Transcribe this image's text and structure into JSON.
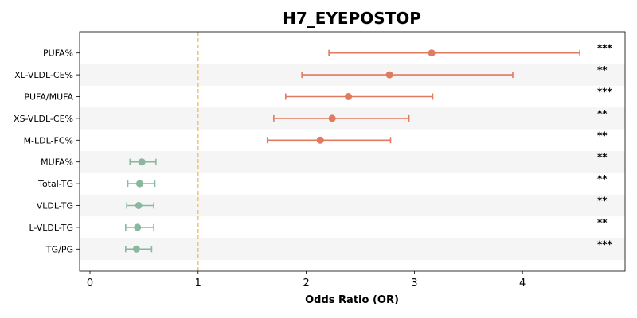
{
  "chart_data": {
    "type": "forest",
    "title": "H7_EYEPOSTOP",
    "xlabel": "Odds Ratio (OR)",
    "ylabel": "",
    "xlim": [
      -0.05,
      4.95
    ],
    "xticks": [
      0,
      1,
      2,
      3,
      4
    ],
    "reference_line": 1,
    "grid": false,
    "colors": {
      "positive": "#e07b5f",
      "negative": "#88b89e",
      "reference": "#f0c27a",
      "band": "#f5f5f5"
    },
    "rows": [
      {
        "label": "PUFA%",
        "or": 3.16,
        "lo": 2.21,
        "hi": 4.53,
        "sig": "***",
        "dir": "positive"
      },
      {
        "label": "XL-VLDL-CE%",
        "or": 2.77,
        "lo": 1.96,
        "hi": 3.91,
        "sig": "**",
        "dir": "positive"
      },
      {
        "label": "PUFA/MUFA",
        "or": 2.39,
        "lo": 1.81,
        "hi": 3.17,
        "sig": "***",
        "dir": "positive"
      },
      {
        "label": "XS-VLDL-CE%",
        "or": 2.24,
        "lo": 1.7,
        "hi": 2.95,
        "sig": "**",
        "dir": "positive"
      },
      {
        "label": "M-LDL-FC%",
        "or": 2.13,
        "lo": 1.64,
        "hi": 2.78,
        "sig": "**",
        "dir": "positive"
      },
      {
        "label": "MUFA%",
        "or": 0.48,
        "lo": 0.37,
        "hi": 0.61,
        "sig": "**",
        "dir": "negative"
      },
      {
        "label": "Total-TG",
        "or": 0.46,
        "lo": 0.35,
        "hi": 0.6,
        "sig": "**",
        "dir": "negative"
      },
      {
        "label": "VLDL-TG",
        "or": 0.45,
        "lo": 0.34,
        "hi": 0.59,
        "sig": "**",
        "dir": "negative"
      },
      {
        "label": "L-VLDL-TG",
        "or": 0.44,
        "lo": 0.33,
        "hi": 0.59,
        "sig": "**",
        "dir": "negative"
      },
      {
        "label": "TG/PG",
        "or": 0.43,
        "lo": 0.33,
        "hi": 0.57,
        "sig": "***",
        "dir": "negative"
      }
    ]
  }
}
